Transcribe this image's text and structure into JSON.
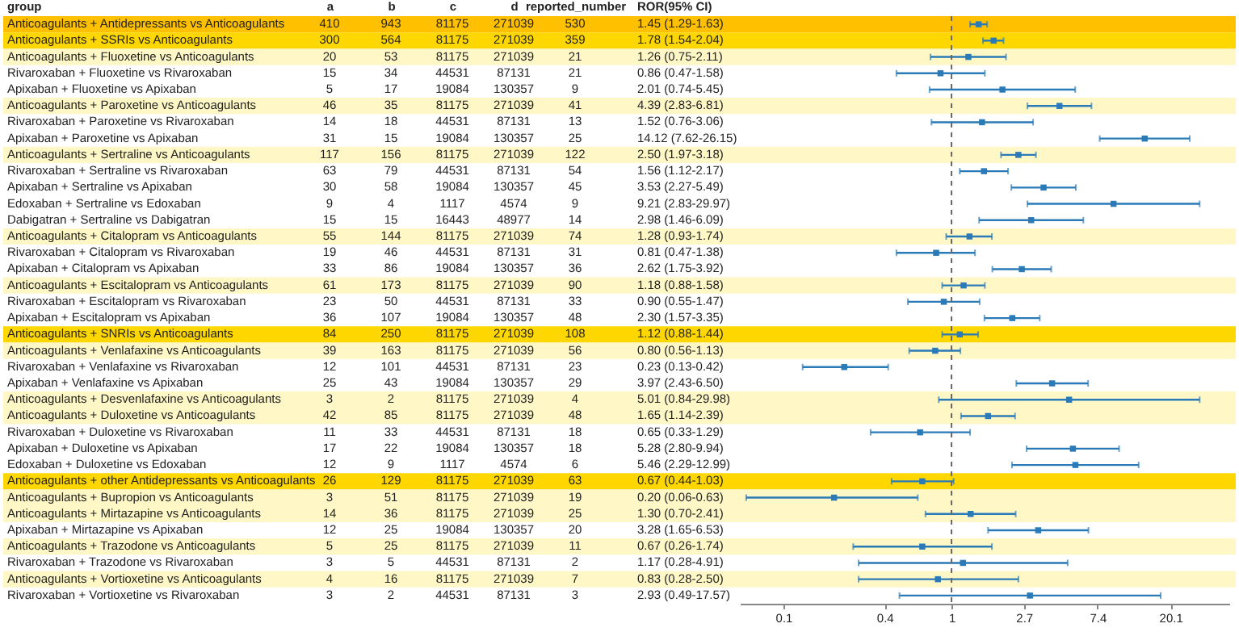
{
  "chart_data": [
    {
      "type": "heatmap",
      "ylabel": "group",
      "categories": [
        "a",
        "b",
        "c",
        "d",
        "reported_number"
      ],
      "y_categories": [
        "Anticoagulants + Antidepressants vs Anticoagulants",
        "Anticoagulants + SSRIs vs Anticoagulants",
        "Anticoagulants + Fluoxetine vs Anticoagulants",
        "Rivaroxaban + Fluoxetine vs Rivaroxaban",
        "Apixaban + Fluoxetine vs Apixaban",
        "Anticoagulants + Paroxetine vs Anticoagulants",
        "Rivaroxaban + Paroxetine vs Rivaroxaban",
        "Apixaban + Paroxetine vs Apixaban",
        "Anticoagulants + Sertraline vs Anticoagulants",
        "Rivaroxaban + Sertraline vs Rivaroxaban",
        "Apixaban + Sertraline vs Apixaban",
        "Edoxaban + Sertraline vs Edoxaban",
        "Dabigatran + Sertraline vs Dabigatran",
        "Anticoagulants + Citalopram vs Anticoagulants",
        "Rivaroxaban + Citalopram vs Rivaroxaban",
        "Apixaban + Citalopram vs Apixaban",
        "Anticoagulants + Escitalopram vs Anticoagulants",
        "Rivaroxaban + Escitalopram vs Rivaroxaban",
        "Apixaban + Escitalopram vs Apixaban",
        "Anticoagulants + SNRIs vs Anticoagulants",
        "Anticoagulants + Venlafaxine vs Anticoagulants",
        "Rivaroxaban + Venlafaxine vs Rivaroxaban",
        "Apixaban + Venlafaxine vs Apixaban",
        "Anticoagulants + Desvenlafaxine vs Anticoagulants",
        "Anticoagulants + Duloxetine vs Anticoagulants",
        "Rivaroxaban + Duloxetine vs Rivaroxaban",
        "Apixaban + Duloxetine vs Apixaban",
        "Edoxaban + Duloxetine vs Edoxaban",
        "Anticoagulants + other Antidepressants vs Anticoagulants",
        "Anticoagulants + Bupropion vs Anticoagulants",
        "Anticoagulants + Mirtazapine vs Anticoagulants",
        "Apixaban + Mirtazapine vs Apixaban",
        "Anticoagulants + Trazodone vs Anticoagulants",
        "Rivaroxaban + Trazodone vs Rivaroxaban",
        "Anticoagulants + Vortioxetine vs Anticoagulants",
        "Rivaroxaban + Vortioxetine vs Rivaroxaban"
      ],
      "cells": [
        [
          410,
          943,
          81175,
          271039,
          530
        ],
        [
          300,
          564,
          81175,
          271039,
          359
        ],
        [
          20,
          53,
          81175,
          271039,
          21
        ],
        [
          15,
          34,
          44531,
          87131,
          21
        ],
        [
          5,
          17,
          19084,
          130357,
          9
        ],
        [
          46,
          35,
          81175,
          271039,
          41
        ],
        [
          14,
          18,
          44531,
          87131,
          13
        ],
        [
          31,
          15,
          19084,
          130357,
          25
        ],
        [
          117,
          156,
          81175,
          271039,
          122
        ],
        [
          63,
          79,
          44531,
          87131,
          54
        ],
        [
          30,
          58,
          19084,
          130357,
          45
        ],
        [
          9,
          4,
          1117,
          4574,
          9
        ],
        [
          15,
          15,
          16443,
          48977,
          14
        ],
        [
          55,
          144,
          81175,
          271039,
          74
        ],
        [
          19,
          46,
          44531,
          87131,
          31
        ],
        [
          33,
          86,
          19084,
          130357,
          36
        ],
        [
          61,
          173,
          81175,
          271039,
          90
        ],
        [
          23,
          50,
          44531,
          87131,
          33
        ],
        [
          36,
          107,
          19084,
          130357,
          48
        ],
        [
          84,
          250,
          81175,
          271039,
          108
        ],
        [
          39,
          163,
          81175,
          271039,
          56
        ],
        [
          12,
          101,
          44531,
          87131,
          23
        ],
        [
          25,
          43,
          19084,
          130357,
          29
        ],
        [
          3,
          2,
          81175,
          271039,
          4
        ],
        [
          42,
          85,
          81175,
          271039,
          48
        ],
        [
          11,
          33,
          44531,
          87131,
          18
        ],
        [
          17,
          22,
          19084,
          130357,
          18
        ],
        [
          12,
          9,
          1117,
          4574,
          6
        ],
        [
          26,
          129,
          81175,
          271039,
          63
        ],
        [
          3,
          51,
          81175,
          271039,
          19
        ],
        [
          14,
          36,
          81175,
          271039,
          25
        ],
        [
          12,
          25,
          19084,
          130357,
          20
        ],
        [
          5,
          25,
          81175,
          271039,
          11
        ],
        [
          3,
          5,
          44531,
          87131,
          2
        ],
        [
          4,
          16,
          81175,
          271039,
          7
        ],
        [
          3,
          2,
          44531,
          87131,
          3
        ]
      ],
      "data_labels": true,
      "bands": [
        {
          "axis": "y",
          "from": "Anticoagulants + Antidepressants vs Anticoagulants",
          "to": "Anticoagulants + Antidepressants vs Anticoagulants",
          "color": "#ffc000"
        },
        {
          "axis": "y",
          "from": "Anticoagulants + SSRIs vs Anticoagulants",
          "to": "Anticoagulants + SSRIs vs Anticoagulants",
          "color": "#ffd700"
        },
        {
          "axis": "y",
          "from": "Anticoagulants + Fluoxetine vs Anticoagulants",
          "to": "Anticoagulants + Fluoxetine vs Anticoagulants",
          "color": "#fff8c6"
        },
        {
          "axis": "y",
          "from": "Anticoagulants + Paroxetine vs Anticoagulants",
          "to": "Anticoagulants + Paroxetine vs Anticoagulants",
          "color": "#fff8c6"
        },
        {
          "axis": "y",
          "from": "Anticoagulants + Sertraline vs Anticoagulants",
          "to": "Anticoagulants + Sertraline vs Anticoagulants",
          "color": "#fff8c6"
        },
        {
          "axis": "y",
          "from": "Anticoagulants + Citalopram vs Anticoagulants",
          "to": "Anticoagulants + Citalopram vs Anticoagulants",
          "color": "#fff8c6"
        },
        {
          "axis": "y",
          "from": "Anticoagulants + Escitalopram vs Anticoagulants",
          "to": "Anticoagulants + Escitalopram vs Anticoagulants",
          "color": "#fff8c6"
        },
        {
          "axis": "y",
          "from": "Anticoagulants + SNRIs vs Anticoagulants",
          "to": "Anticoagulants + SNRIs vs Anticoagulants",
          "color": "#ffd700"
        },
        {
          "axis": "y",
          "from": "Anticoagulants + Venlafaxine vs Anticoagulants",
          "to": "Anticoagulants + Venlafaxine vs Anticoagulants",
          "color": "#fff8c6"
        },
        {
          "axis": "y",
          "from": "Anticoagulants + Desvenlafaxine vs Anticoagulants",
          "to": "Anticoagulants + Duloxetine vs Anticoagulants",
          "color": "#fff8c6"
        },
        {
          "axis": "y",
          "from": "Anticoagulants + other Antidepressants vs Anticoagulants",
          "to": "Anticoagulants + other Antidepressants vs Anticoagulants",
          "color": "#ffd700"
        },
        {
          "axis": "y",
          "from": "Anticoagulants + Bupropion vs Anticoagulants",
          "to": "Anticoagulants + Mirtazapine vs Anticoagulants",
          "color": "#fff8c6"
        },
        {
          "axis": "y",
          "from": "Anticoagulants + Trazodone vs Anticoagulants",
          "to": "Anticoagulants + Trazodone vs Anticoagulants",
          "color": "#fff8c6"
        },
        {
          "axis": "y",
          "from": "Anticoagulants + Vortioxetine vs Anticoagulants",
          "to": "Anticoagulants + Vortioxetine vs Anticoagulants",
          "color": "#fff8c6"
        }
      ]
    },
    {
      "type": "scatter",
      "orientation": "horizontal",
      "ylabel": "ROR(95% CI)",
      "log": "x",
      "marker": "square",
      "categories": [
        "1.45 (1.29-1.63)",
        "1.78 (1.54-2.04)",
        "1.26 (0.75-2.11)",
        "0.86 (0.47-1.58)",
        "2.01 (0.74-5.45)",
        "4.39 (2.83-6.81)",
        "1.52 (0.76-3.06)",
        "14.12 (7.62-26.15)",
        "2.50 (1.97-3.18)",
        "1.56 (1.12-2.17)",
        "3.53 (2.27-5.49)",
        "9.21 (2.83-29.97)",
        "2.98 (1.46-6.09)",
        "1.28 (0.93-1.74)",
        "0.81 (0.47-1.38)",
        "2.62 (1.75-3.92)",
        "1.18 (0.88-1.58)",
        "0.90 (0.55-1.47)",
        "2.30 (1.57-3.35)",
        "1.12 (0.88-1.44)",
        "0.80 (0.56-1.13)",
        "0.23 (0.13-0.42)",
        "3.97 (2.43-6.50)",
        "5.01 (0.84-29.98)",
        "1.65 (1.14-2.39)",
        "0.65 (0.33-1.29)",
        "5.28 (2.80-9.94)",
        "5.46 (2.29-12.99)",
        "0.67 (0.44-1.03)",
        "0.20 (0.06-0.63)",
        "1.30 (0.70-2.41)",
        "3.28 (1.65-6.53)",
        "0.67 (0.26-1.74)",
        "1.17 (0.28-4.91)",
        "0.83 (0.28-2.50)",
        "2.93 (0.49-17.57)"
      ],
      "series": [
        {
          "color": "#2a7ab8",
          "values": [
            1.45,
            1.78,
            1.26,
            0.86,
            2.01,
            4.39,
            1.52,
            14.12,
            2.5,
            1.56,
            3.53,
            9.21,
            2.98,
            1.28,
            0.81,
            2.62,
            1.18,
            0.9,
            2.3,
            1.12,
            0.8,
            0.23,
            3.97,
            5.01,
            1.65,
            0.65,
            5.28,
            5.46,
            0.67,
            0.2,
            1.3,
            3.28,
            0.67,
            1.17,
            0.83,
            2.93
          ],
          "errors": [
            [
              1.29,
              1.63
            ],
            [
              1.54,
              2.04
            ],
            [
              0.75,
              2.11
            ],
            [
              0.47,
              1.58
            ],
            [
              0.74,
              5.45
            ],
            [
              2.83,
              6.81
            ],
            [
              0.76,
              3.06
            ],
            [
              7.62,
              26.15
            ],
            [
              1.97,
              3.18
            ],
            [
              1.12,
              2.17
            ],
            [
              2.27,
              5.49
            ],
            [
              2.83,
              29.97
            ],
            [
              1.46,
              6.09
            ],
            [
              0.93,
              1.74
            ],
            [
              0.47,
              1.38
            ],
            [
              1.75,
              3.92
            ],
            [
              0.88,
              1.58
            ],
            [
              0.55,
              1.47
            ],
            [
              1.57,
              3.35
            ],
            [
              0.88,
              1.44
            ],
            [
              0.56,
              1.13
            ],
            [
              0.13,
              0.42
            ],
            [
              2.43,
              6.5
            ],
            [
              0.84,
              29.98
            ],
            [
              1.14,
              2.39
            ],
            [
              0.33,
              1.29
            ],
            [
              2.8,
              9.94
            ],
            [
              2.29,
              12.99
            ],
            [
              0.44,
              1.03
            ],
            [
              0.06,
              0.63
            ],
            [
              0.7,
              2.41
            ],
            [
              1.65,
              6.53
            ],
            [
              0.26,
              1.74
            ],
            [
              0.28,
              4.91
            ],
            [
              0.28,
              2.5
            ],
            [
              0.49,
              17.57
            ]
          ]
        }
      ],
      "xlim": [
        0.055,
        45
      ],
      "xticks": [
        0.1,
        0.4,
        1,
        2.7,
        7.4,
        20.1
      ],
      "ref_lines": [
        {
          "axis": "x",
          "value": 1,
          "color": "#666666",
          "line_style": "dashed"
        }
      ]
    }
  ]
}
